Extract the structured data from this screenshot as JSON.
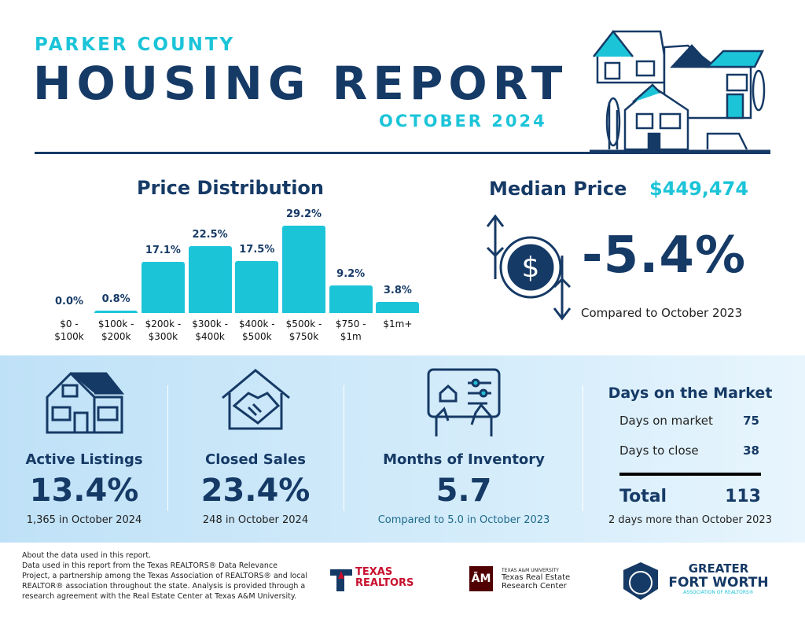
{
  "header": {
    "county": "PARKER COUNTY",
    "title": "HOUSING REPORT",
    "period": "OCTOBER 2024"
  },
  "chart_data": {
    "type": "bar",
    "title": "Price Distribution",
    "categories": [
      "$0 - $100k",
      "$100k - $200k",
      "$200k - $300k",
      "$300k - $400k",
      "$400k - $500k",
      "$500k - $750k",
      "$750 - $1m",
      "$1m+"
    ],
    "values": [
      0.0,
      0.8,
      17.1,
      22.5,
      17.5,
      29.2,
      9.2,
      3.8
    ],
    "value_labels": [
      "0.0%",
      "0.8%",
      "17.1%",
      "22.5%",
      "17.5%",
      "29.2%",
      "9.2%",
      "3.8%"
    ],
    "color": "#1cc4d8"
  },
  "median": {
    "label": "Median Price",
    "value": "$449,474",
    "change": "-5.4%",
    "note": "Compared to October 2023"
  },
  "stats": [
    {
      "label": "Active Listings",
      "value": "13.4%",
      "note": "1,365 in October 2024"
    },
    {
      "label": "Closed Sales",
      "value": "23.4%",
      "note": "248 in October 2024"
    },
    {
      "label": "Months of Inventory",
      "value": "5.7",
      "note": "Compared to 5.0 in October 2023"
    }
  ],
  "days": {
    "title": "Days on the Market",
    "rows": [
      {
        "label": "Days on market",
        "value": 75
      },
      {
        "label": "Days to close",
        "value": 38
      }
    ],
    "total": {
      "label": "Total",
      "value": 113
    },
    "note": "2 days more than October 2023"
  },
  "footer": {
    "lines": [
      "About the data used in this report.",
      "Data used in this report from the Texas REALTORS® Data Relevance",
      "Project, a partnership among the Texas Association of REALTORS® and local",
      "REALTOR® association throughout the state. Analysis is provided through a",
      "research agreement with the Real Estate Center at Texas A&M University."
    ],
    "logos": {
      "texas_realtors": [
        "TEXAS",
        "REALTORS"
      ],
      "tamu": [
        "TEXAS A&M UNIVERSITY",
        "Texas Real Estate",
        "Research Center"
      ],
      "gfw": [
        "GREATER",
        "FORT WORTH",
        "ASSOCIATION OF REALTORS®"
      ]
    }
  }
}
